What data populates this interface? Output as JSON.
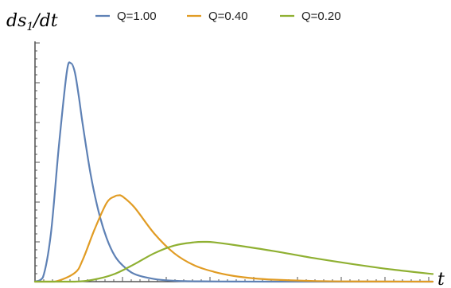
{
  "chart_data": {
    "type": "line",
    "title": "",
    "ylabel": {
      "main": "ds",
      "sub": "1",
      "tail": "/dt"
    },
    "xlabel": "t",
    "y_ticks": "unlabeled",
    "x_ticks": "unlabeled",
    "grid": false,
    "legend_placement": "top",
    "series": [
      {
        "name": "Q=1.00",
        "color": "#5e81b5",
        "x": [
          0,
          0.02,
          0.04,
          0.06,
          0.08,
          0.09,
          0.1,
          0.11,
          0.12,
          0.14,
          0.16,
          0.18,
          0.2,
          0.22,
          0.25,
          0.3,
          0.35,
          0.4,
          0.5,
          0.6,
          1.0
        ],
        "y": [
          0,
          0.02,
          0.22,
          0.62,
          0.96,
          1.0,
          0.96,
          0.85,
          0.72,
          0.49,
          0.32,
          0.2,
          0.12,
          0.075,
          0.035,
          0.012,
          0.004,
          0.0015,
          0.0005,
          0.0,
          0.0
        ]
      },
      {
        "name": "Q=0.40",
        "color": "#e19c24",
        "x": [
          0,
          0.05,
          0.1,
          0.12,
          0.15,
          0.18,
          0.2,
          0.21,
          0.22,
          0.25,
          0.3,
          0.35,
          0.4,
          0.45,
          0.5,
          0.55,
          0.6,
          0.7,
          0.8,
          1.0
        ],
        "y": [
          0,
          0.0,
          0.04,
          0.1,
          0.24,
          0.36,
          0.39,
          0.395,
          0.39,
          0.34,
          0.22,
          0.13,
          0.075,
          0.045,
          0.026,
          0.015,
          0.009,
          0.003,
          0.001,
          0.0
        ]
      },
      {
        "name": "Q=0.20",
        "color": "#8fb032",
        "x": [
          0,
          0.1,
          0.15,
          0.2,
          0.25,
          0.3,
          0.35,
          0.4,
          0.43,
          0.45,
          0.5,
          0.6,
          0.7,
          0.8,
          0.9,
          1.0
        ],
        "y": [
          0,
          0.0,
          0.01,
          0.035,
          0.08,
          0.13,
          0.165,
          0.18,
          0.182,
          0.18,
          0.168,
          0.14,
          0.108,
          0.08,
          0.055,
          0.035
        ]
      }
    ],
    "xlim": [
      0,
      1.0
    ],
    "ylim": [
      0,
      1.1
    ]
  }
}
